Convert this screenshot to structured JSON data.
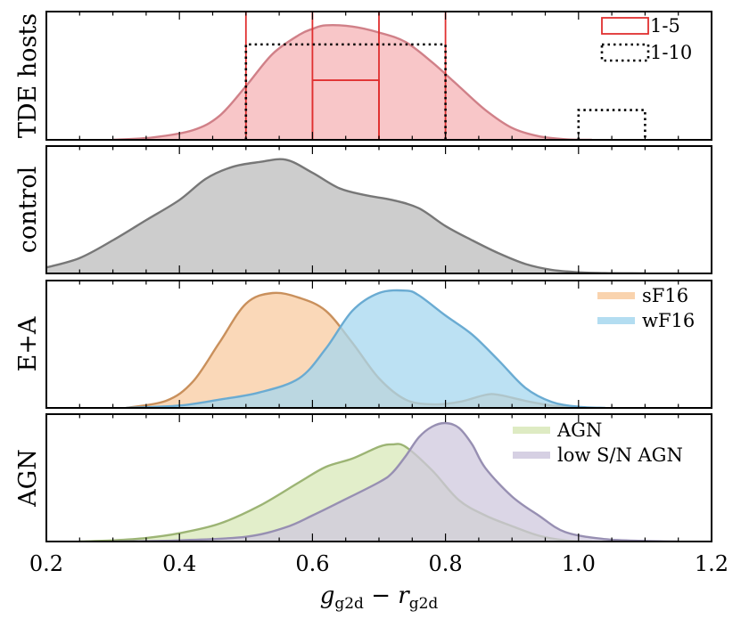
{
  "chart_data": [
    {
      "type": "area",
      "panel": "TDE hosts",
      "ylabel": "TDE hosts",
      "xlim": [
        0.2,
        1.2
      ],
      "series": [
        {
          "name": "TDE hosts",
          "kind": "kde",
          "fill": "#f6b3b5",
          "stroke": "#d08088",
          "x": [
            0.3,
            0.36,
            0.42,
            0.46,
            0.5,
            0.54,
            0.58,
            0.6,
            0.62,
            0.66,
            0.7,
            0.74,
            0.78,
            0.82,
            0.86,
            0.9,
            0.94,
            0.98,
            1.02
          ],
          "y": [
            0.0,
            0.02,
            0.08,
            0.2,
            0.45,
            0.72,
            0.88,
            0.93,
            0.96,
            0.95,
            0.9,
            0.82,
            0.65,
            0.45,
            0.25,
            0.1,
            0.03,
            0.005,
            0.0
          ]
        }
      ],
      "histograms": [
        {
          "name": "1-5",
          "style": "solid",
          "color": "#e03030",
          "bins": [
            [
              0.5,
              0.6,
              1.0
            ],
            [
              0.6,
              0.7,
              0.5
            ],
            [
              0.7,
              0.8,
              1.0
            ]
          ]
        },
        {
          "name": "1-10",
          "style": "dotted",
          "color": "#000000",
          "bins": [
            [
              0.5,
              0.8,
              0.8
            ],
            [
              1.0,
              1.1,
              0.25
            ]
          ]
        }
      ],
      "legend": [
        "1-5",
        "1-10"
      ]
    },
    {
      "type": "area",
      "panel": "control",
      "ylabel": "control",
      "xlim": [
        0.2,
        1.2
      ],
      "series": [
        {
          "name": "control",
          "kind": "kde",
          "fill": "#bcbcbc",
          "stroke": "#777777",
          "x": [
            0.2,
            0.25,
            0.3,
            0.35,
            0.4,
            0.44,
            0.48,
            0.52,
            0.56,
            0.6,
            0.64,
            0.68,
            0.72,
            0.76,
            0.8,
            0.84,
            0.88,
            0.92,
            0.96,
            1.0,
            1.04,
            1.08,
            1.1
          ],
          "y": [
            0.05,
            0.13,
            0.28,
            0.45,
            0.62,
            0.8,
            0.9,
            0.94,
            0.96,
            0.85,
            0.72,
            0.66,
            0.62,
            0.55,
            0.4,
            0.28,
            0.17,
            0.08,
            0.03,
            0.01,
            0.003,
            0.001,
            0.0
          ]
        }
      ],
      "legend": []
    },
    {
      "type": "area",
      "panel": "E+A",
      "ylabel": "E+A",
      "xlim": [
        0.2,
        1.2
      ],
      "series": [
        {
          "name": "sF16",
          "kind": "kde",
          "fill": "#f8cba0",
          "stroke": "#c9905c",
          "x": [
            0.32,
            0.38,
            0.42,
            0.46,
            0.5,
            0.54,
            0.58,
            0.62,
            0.66,
            0.7,
            0.74,
            0.78,
            0.82,
            0.86,
            0.88,
            0.92,
            0.96,
            1.0
          ],
          "y": [
            0.0,
            0.06,
            0.22,
            0.55,
            0.88,
            0.97,
            0.93,
            0.82,
            0.55,
            0.25,
            0.07,
            0.03,
            0.05,
            0.11,
            0.11,
            0.06,
            0.02,
            0.0
          ]
        },
        {
          "name": "wF16",
          "kind": "kde",
          "fill": "#a6d7ef",
          "stroke": "#6aabd2",
          "x": [
            0.32,
            0.4,
            0.46,
            0.52,
            0.58,
            0.62,
            0.66,
            0.7,
            0.74,
            0.76,
            0.8,
            0.84,
            0.88,
            0.92,
            0.96,
            1.0,
            1.04
          ],
          "y": [
            0.0,
            0.02,
            0.07,
            0.13,
            0.25,
            0.5,
            0.82,
            0.97,
            0.99,
            0.95,
            0.78,
            0.62,
            0.4,
            0.17,
            0.05,
            0.01,
            0.0
          ]
        }
      ],
      "legend": [
        "sF16",
        "wF16"
      ]
    },
    {
      "type": "area",
      "panel": "AGN",
      "ylabel": "AGN",
      "xlim": [
        0.2,
        1.2
      ],
      "series": [
        {
          "name": "AGN",
          "kind": "kde",
          "fill": "#d8e8b8",
          "stroke": "#9cb474",
          "x": [
            0.25,
            0.3,
            0.35,
            0.4,
            0.46,
            0.52,
            0.58,
            0.62,
            0.66,
            0.7,
            0.72,
            0.74,
            0.78,
            0.82,
            0.86,
            0.9,
            0.94,
            0.98,
            1.02
          ],
          "y": [
            0.0,
            0.01,
            0.03,
            0.07,
            0.15,
            0.3,
            0.5,
            0.63,
            0.7,
            0.8,
            0.82,
            0.8,
            0.6,
            0.35,
            0.22,
            0.13,
            0.05,
            0.01,
            0.0
          ]
        },
        {
          "name": "low S/N AGN",
          "kind": "kde",
          "fill": "#cfc8de",
          "stroke": "#978fb2",
          "x": [
            0.3,
            0.4,
            0.5,
            0.56,
            0.6,
            0.64,
            0.7,
            0.72,
            0.74,
            0.76,
            0.78,
            0.8,
            0.82,
            0.84,
            0.86,
            0.9,
            0.94,
            0.98,
            1.04,
            1.1,
            1.15
          ],
          "y": [
            0.0,
            0.01,
            0.04,
            0.12,
            0.22,
            0.33,
            0.5,
            0.58,
            0.72,
            0.88,
            0.97,
            1.0,
            0.96,
            0.82,
            0.62,
            0.38,
            0.22,
            0.08,
            0.02,
            0.005,
            0.0
          ]
        }
      ],
      "legend": [
        "AGN",
        "low S/N AGN"
      ]
    }
  ],
  "xaxis": {
    "ticks": [
      "0.2",
      "0.4",
      "0.6",
      "0.8",
      "1.0",
      "1.2"
    ],
    "tick_values": [
      0.2,
      0.4,
      0.6,
      0.8,
      1.0,
      1.2
    ],
    "label_main_1": "g",
    "label_sub_1": "g2d",
    "label_minus": " − ",
    "label_main_2": "r",
    "label_sub_2": "g2d"
  }
}
